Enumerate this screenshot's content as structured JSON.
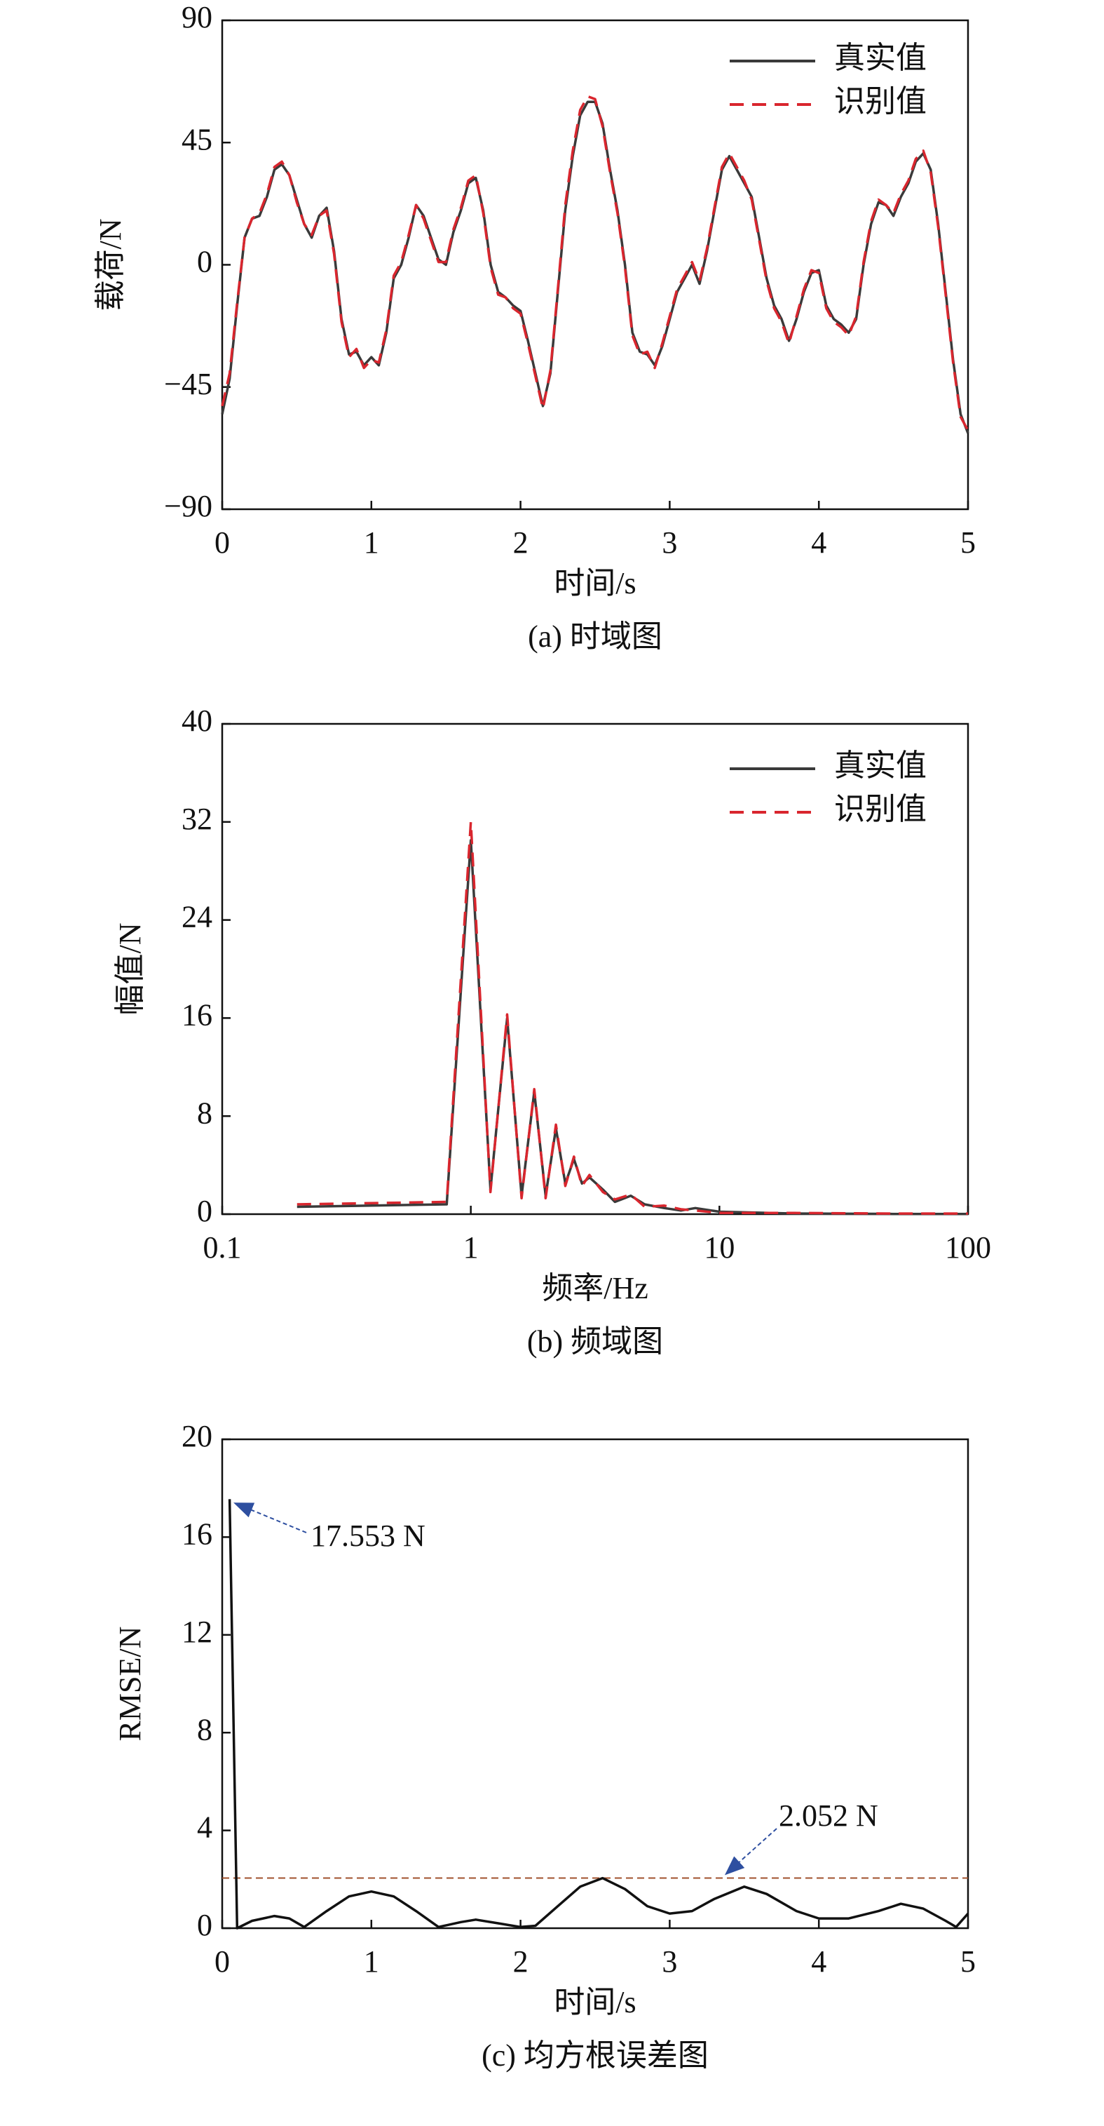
{
  "chart_data": [
    {
      "type": "line",
      "title": null,
      "caption": "(a) 时域图",
      "xlabel": "时间/s",
      "ylabel": "载荷/N",
      "xlim": [
        0,
        5
      ],
      "xticks": [
        0,
        1,
        2,
        3,
        4,
        5
      ],
      "ylim": [
        -90,
        90
      ],
      "yticks": [
        {
          "value": -90,
          "label": "−90"
        },
        {
          "value": -45,
          "label": "−45"
        },
        0,
        45,
        90
      ],
      "legend": "upper right",
      "x": [
        0,
        0.05,
        0.1,
        0.15,
        0.2,
        0.25,
        0.3,
        0.35,
        0.4,
        0.45,
        0.5,
        0.55,
        0.6,
        0.65,
        0.7,
        0.75,
        0.8,
        0.85,
        0.9,
        0.95,
        1,
        1.05,
        1.1,
        1.15,
        1.2,
        1.25,
        1.3,
        1.35,
        1.4,
        1.45,
        1.5,
        1.55,
        1.6,
        1.65,
        1.7,
        1.75,
        1.8,
        1.85,
        1.9,
        1.95,
        2,
        2.05,
        2.1,
        2.15,
        2.2,
        2.25,
        2.3,
        2.35,
        2.4,
        2.45,
        2.5,
        2.55,
        2.6,
        2.65,
        2.7,
        2.75,
        2.8,
        2.85,
        2.9,
        2.95,
        3,
        3.05,
        3.1,
        3.15,
        3.2,
        3.25,
        3.3,
        3.35,
        3.4,
        3.45,
        3.5,
        3.55,
        3.6,
        3.65,
        3.7,
        3.75,
        3.8,
        3.85,
        3.9,
        3.95,
        4,
        4.05,
        4.1,
        4.15,
        4.2,
        4.25,
        4.3,
        4.35,
        4.4,
        4.45,
        4.5,
        4.55,
        4.6,
        4.65,
        4.7,
        4.75,
        4.8,
        4.85,
        4.9,
        4.95,
        5
      ],
      "series": [
        {
          "name": "真实值",
          "color": "#3a3a3a",
          "dash": false,
          "values": [
            -55,
            -42,
            -15,
            10,
            17,
            18,
            25,
            35,
            37,
            33,
            24,
            15,
            10,
            18,
            21,
            5,
            -20,
            -33,
            -32,
            -37,
            -34,
            -37,
            -25,
            -5,
            0,
            10,
            22,
            18,
            10,
            2,
            0,
            12,
            20,
            30,
            32,
            20,
            0,
            -10,
            -12,
            -15,
            -17,
            -28,
            -40,
            -52,
            -40,
            -10,
            20,
            40,
            55,
            60,
            60,
            52,
            35,
            20,
            0,
            -25,
            -32,
            -33,
            -37,
            -30,
            -20,
            -10,
            -5,
            0,
            -7,
            5,
            20,
            35,
            40,
            35,
            30,
            25,
            10,
            -5,
            -15,
            -20,
            -28,
            -20,
            -10,
            -3,
            -2,
            -15,
            -20,
            -22,
            -25,
            -20,
            0,
            15,
            23,
            22,
            18,
            25,
            30,
            38,
            41,
            35,
            15,
            -10,
            -35,
            -55,
            -62
          ]
        },
        {
          "name": "识别值",
          "color": "#d9262e",
          "dash": true,
          "values": [
            -52,
            -40,
            -14,
            10,
            17,
            19,
            26,
            36,
            38,
            33,
            23,
            15,
            11,
            18,
            20,
            4,
            -21,
            -34,
            -31,
            -38,
            -35,
            -36,
            -24,
            -4,
            1,
            11,
            22,
            17,
            9,
            1,
            1,
            13,
            21,
            31,
            33,
            19,
            -1,
            -11,
            -12,
            -16,
            -18,
            -29,
            -41,
            -53,
            -39,
            -9,
            22,
            42,
            57,
            62,
            61,
            51,
            34,
            19,
            -1,
            -26,
            -33,
            -32,
            -38,
            -29,
            -19,
            -9,
            -4,
            1,
            -6,
            6,
            21,
            36,
            41,
            36,
            31,
            24,
            9,
            -6,
            -16,
            -21,
            -29,
            -19,
            -9,
            -2,
            -3,
            -16,
            -21,
            -23,
            -26,
            -19,
            1,
            16,
            24,
            22,
            19,
            26,
            31,
            39,
            42,
            34,
            14,
            -11,
            -36,
            -56,
            -61
          ]
        }
      ]
    },
    {
      "type": "line",
      "title": null,
      "caption": "(b) 频域图",
      "xlabel": "频率/Hz",
      "ylabel": "幅值/N",
      "xscale": "log",
      "xlim": [
        0.1,
        100
      ],
      "xticks": [
        0.1,
        1,
        10,
        100
      ],
      "ylim": [
        0,
        40
      ],
      "yticks": [
        0,
        8,
        16,
        24,
        32,
        40
      ],
      "legend": "upper right",
      "x": [
        0.2,
        0.8,
        1.0,
        1.2,
        1.4,
        1.6,
        1.8,
        2.0,
        2.2,
        2.4,
        2.6,
        2.8,
        3.0,
        3.4,
        3.8,
        4.4,
        5,
        6,
        7,
        8,
        10,
        20,
        50,
        100
      ],
      "series": [
        {
          "name": "真实值",
          "color": "#3a3a3a",
          "dash": false,
          "values": [
            0.6,
            0.8,
            30.5,
            2,
            16,
            1.5,
            10,
            1.5,
            7,
            2.5,
            4.5,
            2.5,
            3,
            2,
            1,
            1.5,
            0.8,
            0.5,
            0.3,
            0.5,
            0.2,
            0.05,
            0.02,
            0.02
          ]
        },
        {
          "name": "识别值",
          "color": "#d9262e",
          "dash": true,
          "values": [
            0.8,
            1.0,
            32,
            1.8,
            16.3,
            1.3,
            10.2,
            1.3,
            7.3,
            2.3,
            4.7,
            2.3,
            3.2,
            1.8,
            1.2,
            1.6,
            0.6,
            0.7,
            0.4,
            0.3,
            0.1,
            0.1,
            0.05,
            0.05
          ]
        }
      ]
    },
    {
      "type": "line",
      "title": null,
      "caption": "(c) 均方根误差图",
      "xlabel": "时间/s",
      "ylabel": "RMSE/N",
      "xlim": [
        0,
        5
      ],
      "xticks": [
        0,
        1,
        2,
        3,
        4,
        5
      ],
      "ylim": [
        0,
        20
      ],
      "yticks": [
        0,
        4,
        8,
        12,
        16,
        20
      ],
      "x": [
        0.05,
        0.1,
        0.2,
        0.35,
        0.45,
        0.55,
        0.7,
        0.85,
        1.0,
        1.15,
        1.3,
        1.45,
        1.6,
        1.7,
        1.85,
        2.0,
        2.1,
        2.25,
        2.4,
        2.55,
        2.7,
        2.85,
        3.0,
        3.15,
        3.3,
        3.5,
        3.65,
        3.85,
        4.0,
        4.2,
        4.4,
        4.55,
        4.7,
        4.85,
        4.92,
        5.0
      ],
      "series": [
        {
          "name": null,
          "color": "#111111",
          "dash": false,
          "values": [
            17.553,
            0,
            0.3,
            0.5,
            0.4,
            0.05,
            0.7,
            1.3,
            1.5,
            1.3,
            0.7,
            0.05,
            0.25,
            0.35,
            0.2,
            0.05,
            0.1,
            0.9,
            1.7,
            2.05,
            1.6,
            0.9,
            0.6,
            0.7,
            1.2,
            1.7,
            1.4,
            0.7,
            0.4,
            0.4,
            0.7,
            1.0,
            0.8,
            0.3,
            0.05,
            0.6
          ]
        }
      ],
      "peak_annotation": {
        "x": 0.05,
        "y": 17.553,
        "label": "17.553 N"
      },
      "reference_line": {
        "value": 2.052,
        "label": "2.052 N",
        "color": "#a0522d"
      }
    }
  ]
}
